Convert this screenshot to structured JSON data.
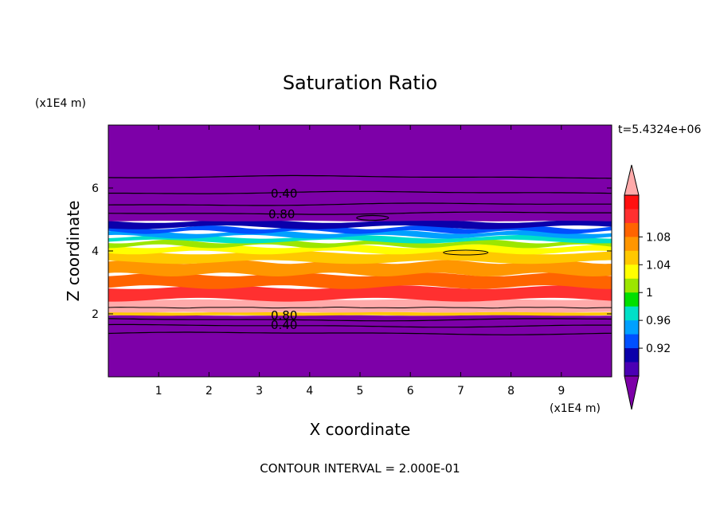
{
  "chart_data": {
    "type": "heatmap",
    "title": "Saturation Ratio",
    "xlabel": "X coordinate",
    "ylabel": "Z coordinate",
    "x_units": "(x1E4 m)",
    "y_units": "(x1E4 m)",
    "time_label": "t=5.4324e+06",
    "footer": "CONTOUR INTERVAL = 2.000E-01",
    "xlim": [
      0,
      10
    ],
    "ylim": [
      0,
      8
    ],
    "x_ticks": [
      "1",
      "2",
      "3",
      "4",
      "5",
      "6",
      "7",
      "8",
      "9"
    ],
    "y_ticks": [
      "2",
      "4",
      "6"
    ],
    "colorbar": {
      "tick_labels": [
        "0.92",
        "0.96",
        "1",
        "1.04",
        "1.08"
      ],
      "colors": [
        "#7d00a8",
        "#4b00b4",
        "#0a00aa",
        "#0050ff",
        "#00a0ff",
        "#00e0c8",
        "#00e000",
        "#9ce600",
        "#ffff00",
        "#ffc800",
        "#ff9600",
        "#ff6400",
        "#ff3030",
        "#ff1010",
        "#ffaaaa"
      ],
      "extend": "both"
    },
    "contour_labels": [
      "0.40",
      "0.80",
      "0.80",
      "0.40"
    ],
    "bands": [
      {
        "z0": 0.0,
        "z1": 1.95,
        "color": "#7d00a8"
      },
      {
        "z0": 1.95,
        "z1": 2.05,
        "color": "#ffc800"
      },
      {
        "z0": 2.05,
        "z1": 2.45,
        "color": "#ffaaaa"
      },
      {
        "z0": 2.45,
        "z1": 2.85,
        "color": "#ff3030"
      },
      {
        "z0": 2.85,
        "z1": 3.25,
        "color": "#ff6400"
      },
      {
        "z0": 3.25,
        "z1": 3.65,
        "color": "#ff9600"
      },
      {
        "z0": 3.65,
        "z1": 3.95,
        "color": "#ffc800"
      },
      {
        "z0": 3.95,
        "z1": 4.15,
        "color": "#ffff00"
      },
      {
        "z0": 4.15,
        "z1": 4.3,
        "color": "#9ce600"
      },
      {
        "z0": 4.3,
        "z1": 4.45,
        "color": "#00e0c8"
      },
      {
        "z0": 4.45,
        "z1": 4.6,
        "color": "#00a0ff"
      },
      {
        "z0": 4.6,
        "z1": 4.75,
        "color": "#0050ff"
      },
      {
        "z0": 4.75,
        "z1": 4.95,
        "color": "#0a00aa"
      },
      {
        "z0": 4.95,
        "z1": 8.0,
        "color": "#7d00a8"
      }
    ],
    "contours": [
      1.38,
      1.62,
      1.82,
      5.2,
      5.48,
      5.85,
      6.35
    ]
  }
}
